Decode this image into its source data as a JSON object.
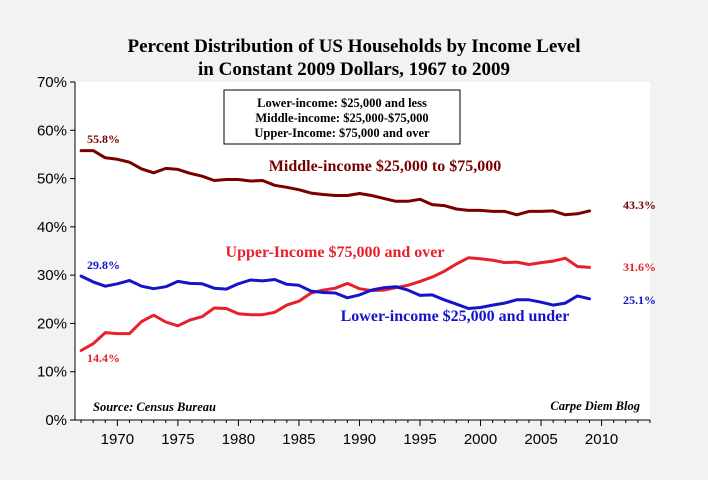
{
  "chart_data": {
    "type": "line",
    "title_lines": [
      "Percent Distribution of US Households by Income Level",
      "in Constant 2009 Dollars, 1967 to 2009"
    ],
    "xlabel": "",
    "ylabel": "",
    "xlim": [
      1966.5,
      2014
    ],
    "ylim": [
      0,
      70
    ],
    "x_ticks": [
      1970,
      1975,
      1980,
      1985,
      1990,
      1995,
      2000,
      2005,
      2010
    ],
    "y_ticks": [
      0,
      10,
      20,
      30,
      40,
      50,
      60,
      70
    ],
    "y_tick_format": "%",
    "grid": false,
    "legend_box": [
      "Lower-income: $25,000 and less",
      "Middle-income: $25,000-$75,000",
      "Upper-Income: $75,000 and over"
    ],
    "source_note": "Source: Census Bureau",
    "credit_note": "Carpe Diem Blog",
    "x": [
      1967,
      1968,
      1969,
      1970,
      1971,
      1972,
      1973,
      1974,
      1975,
      1976,
      1977,
      1978,
      1979,
      1980,
      1981,
      1982,
      1983,
      1984,
      1985,
      1986,
      1987,
      1988,
      1989,
      1990,
      1991,
      1992,
      1993,
      1994,
      1995,
      1996,
      1997,
      1998,
      1999,
      2000,
      2001,
      2002,
      2003,
      2004,
      2005,
      2006,
      2007,
      2008,
      2009
    ],
    "series": [
      {
        "name": "Middle-income $25,000 to $75,000",
        "color": "#7a0000",
        "values": [
          55.8,
          55.8,
          54.3,
          54.0,
          53.4,
          52.0,
          51.2,
          52.1,
          51.9,
          51.1,
          50.5,
          49.6,
          49.8,
          49.8,
          49.5,
          49.6,
          48.6,
          48.2,
          47.7,
          47.0,
          46.7,
          46.5,
          46.5,
          46.9,
          46.5,
          45.9,
          45.3,
          45.3,
          45.7,
          44.6,
          44.4,
          43.7,
          43.4,
          43.4,
          43.2,
          43.2,
          42.5,
          43.2,
          43.2,
          43.3,
          42.5,
          42.7,
          43.3
        ],
        "label": "Middle-income $25,000 to $75,000",
        "start_label": "55.8%",
        "end_label": "43.3%"
      },
      {
        "name": "Upper-Income $75,000 and over",
        "color": "#e8202a",
        "values": [
          14.4,
          15.8,
          18.1,
          17.9,
          17.9,
          20.4,
          21.7,
          20.3,
          19.5,
          20.7,
          21.4,
          23.2,
          23.1,
          22.0,
          21.8,
          21.8,
          22.3,
          23.8,
          24.6,
          26.3,
          26.9,
          27.3,
          28.3,
          27.2,
          26.8,
          26.9,
          27.4,
          27.9,
          28.7,
          29.6,
          30.8,
          32.3,
          33.6,
          33.4,
          33.1,
          32.6,
          32.7,
          32.2,
          32.6,
          32.9,
          33.5,
          31.8,
          31.6
        ],
        "label": "Upper-Income $75,000 and over",
        "start_label": "14.4%",
        "end_label": "31.6%"
      },
      {
        "name": "Lower-income $25,000 and under",
        "color": "#1414c8",
        "values": [
          29.8,
          28.6,
          27.7,
          28.2,
          28.9,
          27.7,
          27.2,
          27.6,
          28.7,
          28.3,
          28.2,
          27.3,
          27.1,
          28.2,
          29.0,
          28.8,
          29.1,
          28.1,
          27.9,
          26.7,
          26.4,
          26.3,
          25.3,
          25.9,
          26.9,
          27.4,
          27.6,
          26.9,
          25.8,
          25.9,
          24.9,
          24.0,
          23.1,
          23.3,
          23.8,
          24.2,
          24.9,
          24.9,
          24.4,
          23.8,
          24.2,
          25.7,
          25.1
        ],
        "label": "Lower-income $25,000 and under",
        "start_label": "29.8%",
        "end_label": "25.1%"
      }
    ]
  }
}
